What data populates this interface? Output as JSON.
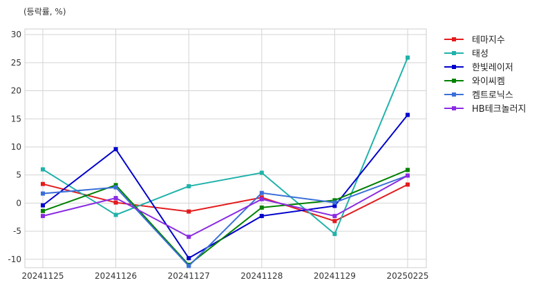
{
  "chart_data": {
    "type": "line",
    "unit_label": "(등락률, %)",
    "categories": [
      "20241125",
      "20241126",
      "20241127",
      "20241128",
      "20241129",
      "20250225"
    ],
    "ylim": [
      -11.5,
      31
    ],
    "yticks": [
      -10,
      -5,
      0,
      5,
      10,
      15,
      20,
      25,
      30
    ],
    "ytick_labels": [
      "-10",
      "-5",
      "0",
      "5",
      "10",
      "15",
      "20",
      "25",
      "30"
    ],
    "grid": true,
    "legend_position": "top-right-outside",
    "series": [
      {
        "name": "테마지수",
        "color": "#e41a1c",
        "values": [
          3.4,
          0.1,
          -1.5,
          1.0,
          -3.2,
          3.3
        ]
      },
      {
        "name": "태성",
        "color": "#20b2aa",
        "values": [
          6.0,
          -2.1,
          3.0,
          5.4,
          -5.5,
          25.9
        ]
      },
      {
        "name": "한빛레이저",
        "color": "#0000cc",
        "values": [
          -0.4,
          9.6,
          -9.8,
          -2.3,
          -0.5,
          15.7
        ]
      },
      {
        "name": "와이씨켐",
        "color": "#008000",
        "values": [
          -1.4,
          3.2,
          -11.0,
          -0.8,
          0.5,
          5.9
        ]
      },
      {
        "name": "켐트로닉스",
        "color": "#3a6fd8",
        "values": [
          1.7,
          2.8,
          -11.2,
          1.8,
          0.1,
          4.9
        ]
      },
      {
        "name": "HB테크놀러지",
        "color": "#8a2be2",
        "values": [
          -2.3,
          0.9,
          -6.0,
          0.7,
          -2.3,
          4.9
        ]
      }
    ]
  }
}
